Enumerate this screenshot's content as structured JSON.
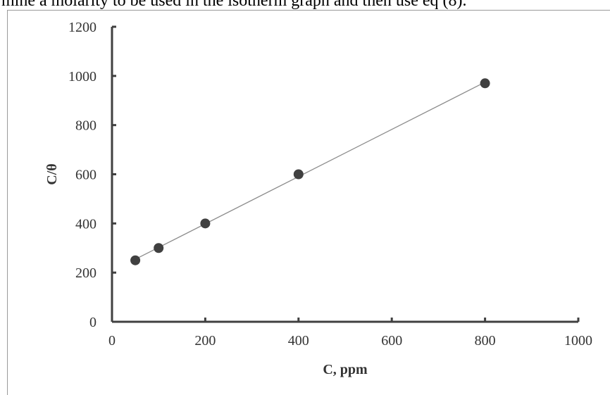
{
  "header": {
    "text": "mine a molarity to be used in the isotherm graph and then use eq (8)."
  },
  "chart_data": {
    "type": "scatter",
    "title": "",
    "xlabel": "C, ppm",
    "ylabel": "C/θ",
    "xlim": [
      0,
      1000
    ],
    "ylim": [
      0,
      1200
    ],
    "x_ticks": [
      0,
      200,
      400,
      600,
      800,
      1000
    ],
    "y_ticks": [
      0,
      200,
      400,
      600,
      800,
      1000,
      1200
    ],
    "grid": false,
    "legend": "none",
    "trendline": "linear",
    "colors": {
      "marker": "#404040",
      "trendline": "#8c8c8c",
      "axis": "#404040"
    },
    "series": [
      {
        "x": [
          50,
          100,
          200,
          400,
          800
        ],
        "y": [
          250,
          300,
          400,
          600,
          970
        ]
      }
    ]
  }
}
